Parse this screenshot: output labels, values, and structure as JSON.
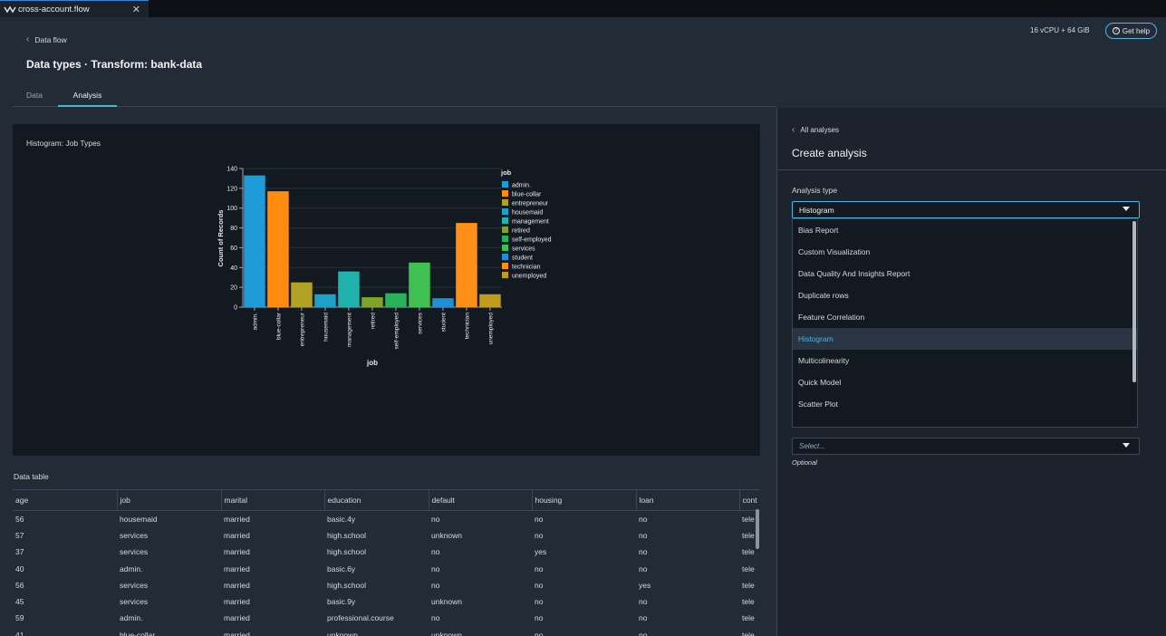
{
  "window": {
    "file_tab": "cross-account.flow"
  },
  "header": {
    "back_label": "Data flow",
    "title": "Data types · Transform: bank-data",
    "resources": "16 vCPU + 64 GiB",
    "help_label": "Get help"
  },
  "tabs": [
    {
      "label": "Data"
    },
    {
      "label": "Analysis"
    }
  ],
  "chart_panel": {
    "title": "Histogram: Job Types"
  },
  "chart_data": {
    "type": "bar",
    "categories": [
      "admin.",
      "blue-collar",
      "entrepreneur",
      "housemaid",
      "management",
      "retired",
      "self-employed",
      "services",
      "student",
      "technician",
      "unemployed"
    ],
    "values": [
      133,
      117,
      25,
      13,
      36,
      10,
      14,
      45,
      9,
      85,
      13
    ],
    "colors": [
      "#1f9bd9",
      "#ff8c0f",
      "#b2a223",
      "#1fa0c9",
      "#22b2ad",
      "#80a42a",
      "#28b35b",
      "#3fc152",
      "#1f8fd6",
      "#ff8f17",
      "#c09b1d"
    ],
    "xlabel": "job",
    "ylabel": "Count of Records",
    "ylim": [
      0,
      140
    ],
    "yticks": [
      0,
      20,
      40,
      60,
      80,
      100,
      120,
      140
    ],
    "legend_title": "job",
    "legend_position": "right"
  },
  "data_table": {
    "title": "Data table",
    "columns": [
      "age",
      "job",
      "marital",
      "education",
      "default",
      "housing",
      "loan",
      "cont"
    ],
    "rows": [
      [
        "56",
        "housemaid",
        "married",
        "basic.4y",
        "no",
        "no",
        "no",
        "tele"
      ],
      [
        "57",
        "services",
        "married",
        "high.school",
        "unknown",
        "no",
        "no",
        "tele"
      ],
      [
        "37",
        "services",
        "married",
        "high.school",
        "no",
        "yes",
        "no",
        "tele"
      ],
      [
        "40",
        "admin.",
        "married",
        "basic.6y",
        "no",
        "no",
        "no",
        "tele"
      ],
      [
        "56",
        "services",
        "married",
        "high.school",
        "no",
        "no",
        "yes",
        "tele"
      ],
      [
        "45",
        "services",
        "married",
        "basic.9y",
        "unknown",
        "no",
        "no",
        "tele"
      ],
      [
        "59",
        "admin.",
        "married",
        "professional.course",
        "no",
        "no",
        "no",
        "tele"
      ],
      [
        "41",
        "blue-collar",
        "married",
        "unknown",
        "unknown",
        "no",
        "no",
        "tele"
      ]
    ]
  },
  "right_panel": {
    "back_label": "All analyses",
    "title": "Create analysis",
    "analysis_type_label": "Analysis type",
    "selected_type": "Histogram",
    "options": [
      "Bias Report",
      "Custom Visualization",
      "Data Quality And Insights Report",
      "Duplicate rows",
      "Feature Correlation",
      "Histogram",
      "Multicolinearity",
      "Quick Model",
      "Scatter Plot"
    ],
    "select_placeholder": "Select...",
    "optional_label": "Optional"
  }
}
